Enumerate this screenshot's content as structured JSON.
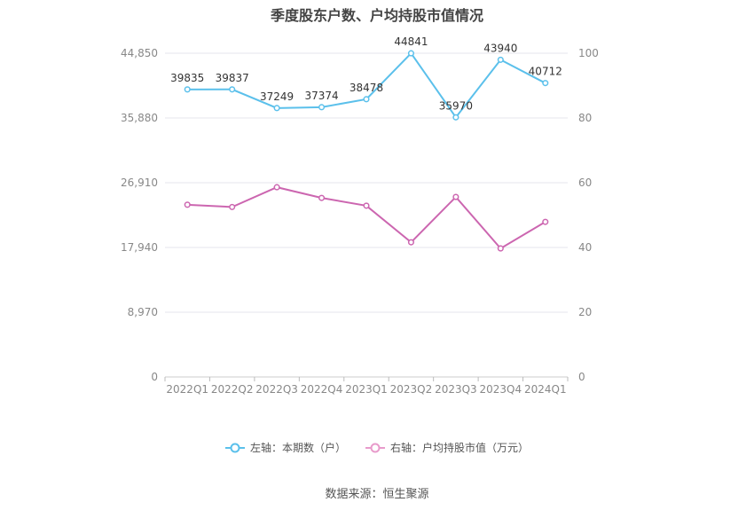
{
  "title": "季度股东户数、户均持股市值情况",
  "source": "数据来源：恒生聚源",
  "legend": [
    {
      "label": "左轴：本期数（户）",
      "color": "#5bc0eb"
    },
    {
      "label": "右轴：户均持股市值（万元）",
      "color": "#e89bcb"
    }
  ],
  "chart_data": {
    "type": "line",
    "categories": [
      "2022Q1",
      "2022Q2",
      "2022Q3",
      "2022Q4",
      "2023Q1",
      "2023Q2",
      "2023Q3",
      "2023Q4",
      "2024Q1"
    ],
    "left_axis": {
      "ticks": [
        "0",
        "8,970",
        "17,940",
        "26,910",
        "35,880",
        "44,850"
      ],
      "ylim": [
        0,
        44850
      ]
    },
    "right_axis": {
      "ticks": [
        "0",
        "20",
        "40",
        "60",
        "80",
        "100"
      ],
      "ylim": [
        0,
        100
      ]
    },
    "series": [
      {
        "name": "本期数（户）",
        "axis": "left",
        "color": "#5bc0eb",
        "values": [
          39835,
          39837,
          37249,
          37374,
          38478,
          44841,
          35970,
          43940,
          40712
        ],
        "labels": [
          "39835",
          "39837",
          "37249",
          "37374",
          "38478",
          "44841",
          "35970",
          "43940",
          "40712"
        ]
      },
      {
        "name": "户均持股市值（万元）",
        "axis": "right",
        "color": "#cc66b0",
        "values": [
          53.2,
          52.5,
          58.6,
          55.3,
          52.9,
          41.6,
          55.6,
          39.7,
          47.9
        ]
      }
    ],
    "grid": true,
    "legend_position": "bottom"
  }
}
